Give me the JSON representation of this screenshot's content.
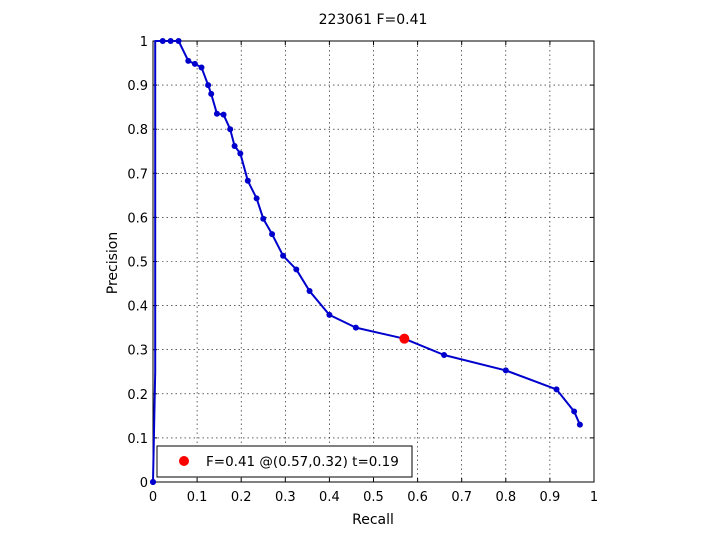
{
  "chart_data": {
    "type": "line",
    "title": "223061 F=0.41",
    "xlabel": "Recall",
    "ylabel": "Precision",
    "xlim": [
      0,
      1
    ],
    "ylim": [
      0,
      1
    ],
    "grid": true,
    "x_ticks": [
      "0",
      "0.1",
      "0.2",
      "0.3",
      "0.4",
      "0.5",
      "0.6",
      "0.7",
      "0.8",
      "0.9",
      "1"
    ],
    "y_ticks": [
      "0",
      "0.1",
      "0.2",
      "0.3",
      "0.4",
      "0.5",
      "0.6",
      "0.7",
      "0.8",
      "0.9",
      "1"
    ],
    "series": [
      {
        "color": "#0000cc",
        "x": [
          0.0,
          0.0,
          0.005,
          0.005,
          0.005,
          0.005,
          0.022,
          0.04,
          0.058,
          0.08,
          0.095,
          0.11,
          0.125,
          0.132,
          0.145,
          0.16,
          0.175,
          0.185,
          0.198,
          0.215,
          0.235,
          0.25,
          0.27,
          0.295,
          0.325,
          0.355,
          0.4,
          0.46,
          0.57,
          0.66,
          0.8,
          0.915,
          0.955,
          0.968
        ],
        "y": [
          0.0,
          0.0,
          0.25,
          0.5,
          0.75,
          1.0,
          1.0,
          1.0,
          1.0,
          0.955,
          0.948,
          0.94,
          0.9,
          0.88,
          0.835,
          0.833,
          0.8,
          0.762,
          0.745,
          0.683,
          0.643,
          0.597,
          0.562,
          0.513,
          0.482,
          0.433,
          0.379,
          0.35,
          0.325,
          0.288,
          0.253,
          0.21,
          0.16,
          0.13
        ],
        "markers": [
          true,
          true,
          false,
          false,
          false,
          false,
          true,
          true,
          true,
          true,
          true,
          true,
          true,
          true,
          true,
          true,
          true,
          true,
          true,
          true,
          true,
          true,
          true,
          true,
          true,
          true,
          true,
          true,
          true,
          true,
          true,
          true,
          true,
          true
        ]
      }
    ],
    "highlight_point": {
      "x": 0.57,
      "y": 0.325,
      "color": "#ff0000"
    },
    "legend": {
      "label": "F=0.41 @(0.57,0.32) t=0.19",
      "placement": "bottom-left"
    }
  }
}
